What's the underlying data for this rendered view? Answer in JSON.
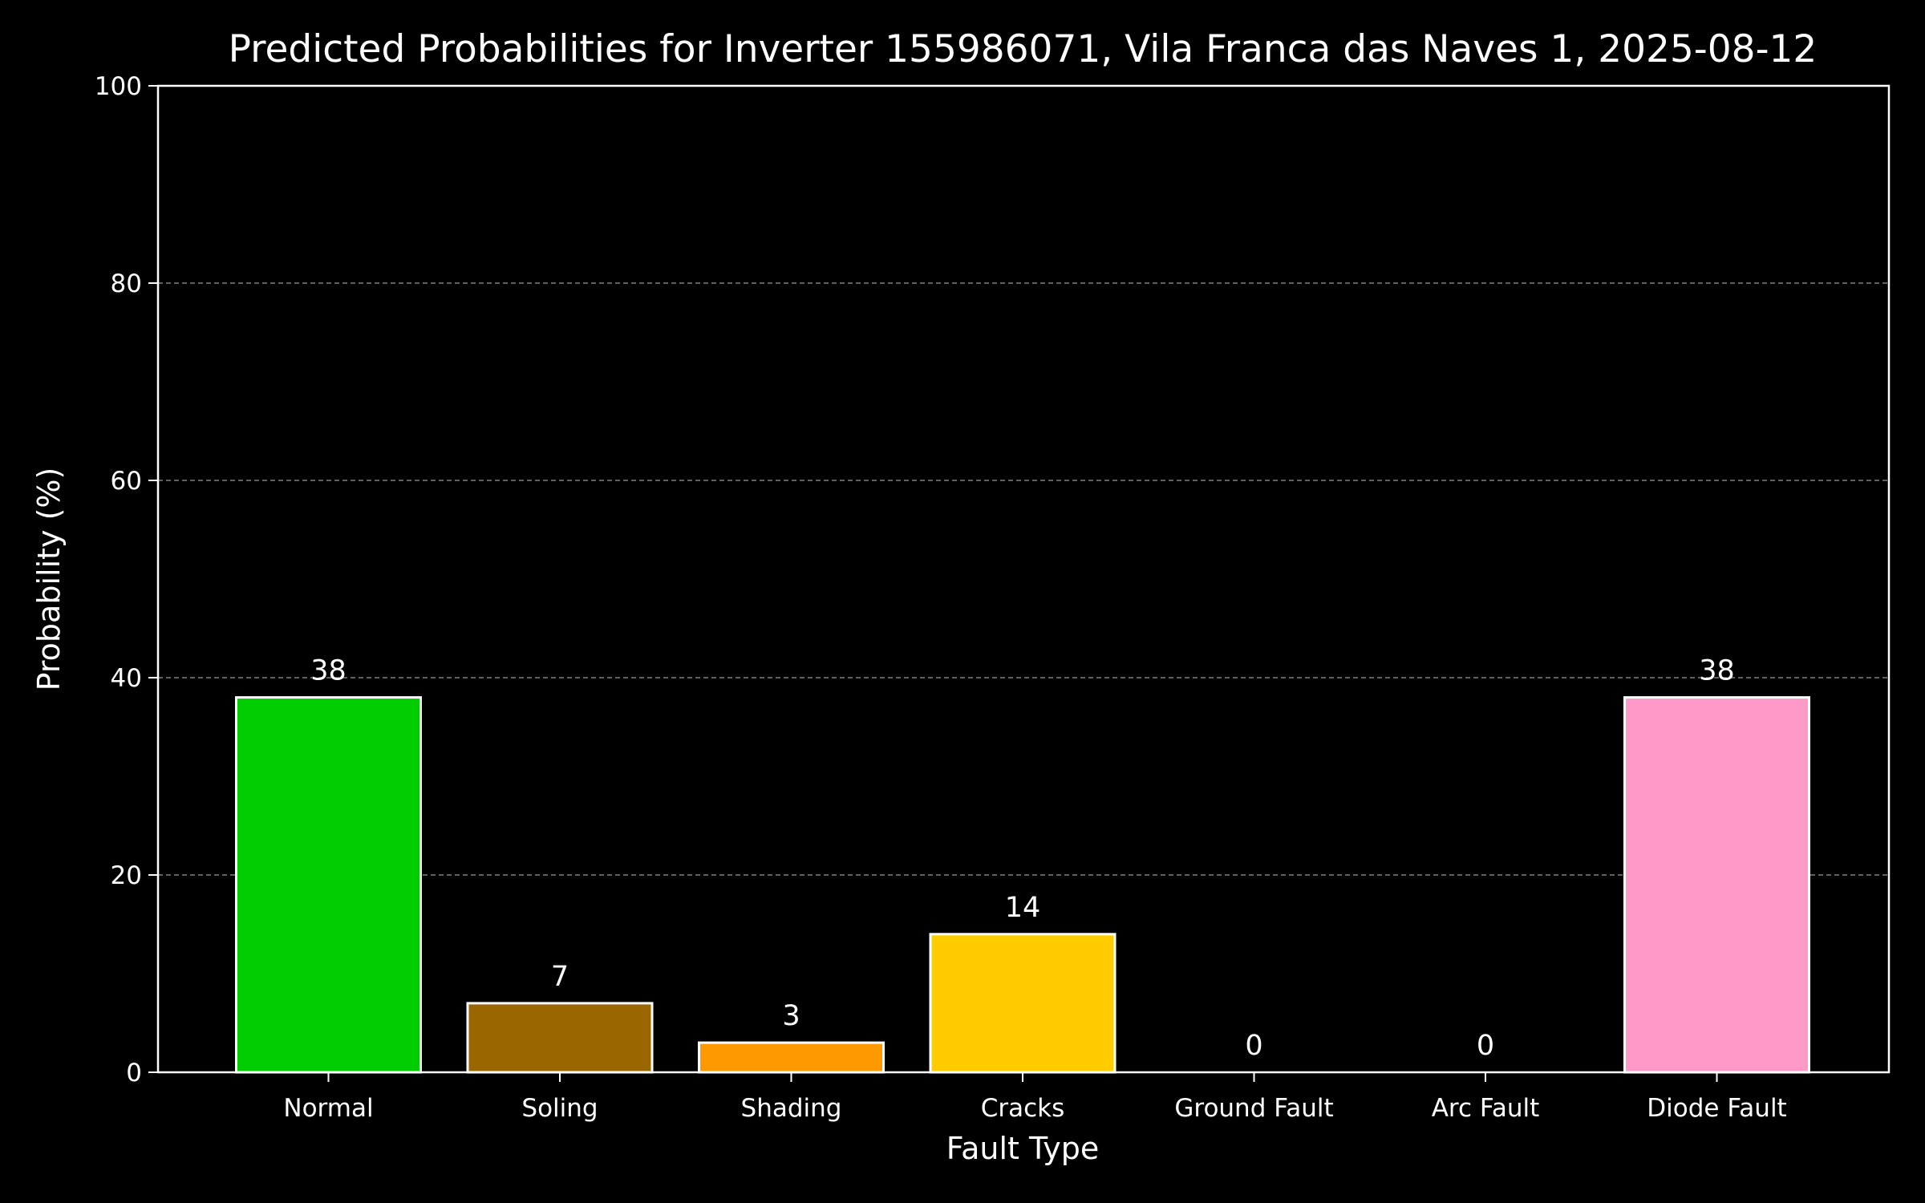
{
  "chart_data": {
    "type": "bar",
    "title": "Predicted Probabilities for Inverter 155986071, Vila Franca das Naves 1, 2025-08-12",
    "xlabel": "Fault Type",
    "ylabel": "Probability (%)",
    "categories": [
      "Normal",
      "Soling",
      "Shading",
      "Cracks",
      "Ground Fault",
      "Arc Fault",
      "Diode Fault"
    ],
    "values": [
      38,
      7,
      3,
      14,
      0,
      0,
      38
    ],
    "value_labels": [
      "38",
      "7",
      "3",
      "14",
      "0",
      "0",
      "38"
    ],
    "colors": [
      "#00cc00",
      "#996600",
      "#ff9900",
      "#ffcc00",
      "#666666",
      "#aaaaaa",
      "#ff99c8"
    ],
    "ylim": [
      0,
      100
    ],
    "yticks": [
      0,
      20,
      40,
      60,
      80,
      100
    ],
    "grid": "y-dashed",
    "legend": "none",
    "background": "#000000",
    "foreground": "#ffffff"
  }
}
